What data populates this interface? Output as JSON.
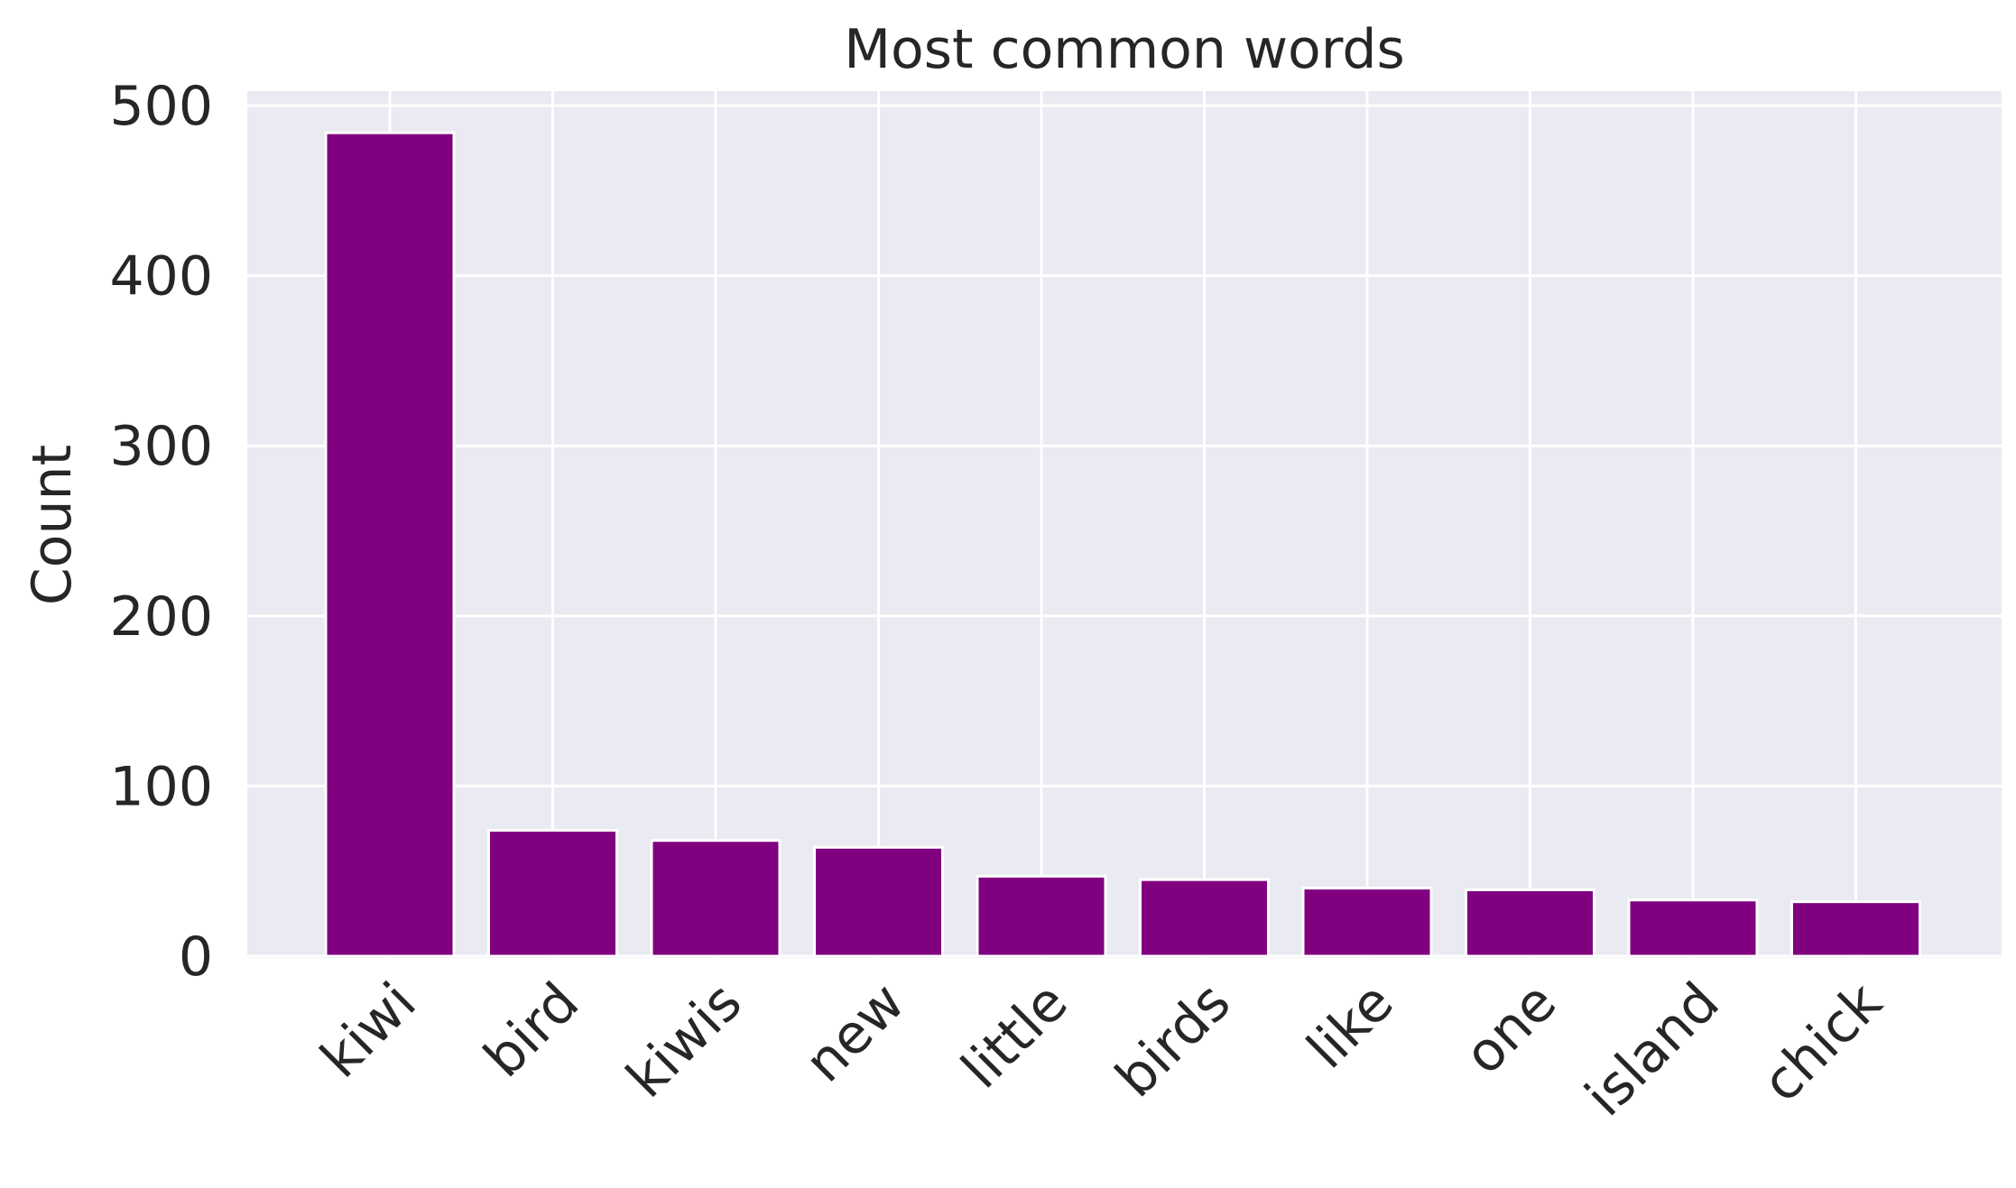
{
  "chart_data": {
    "type": "bar",
    "title": "Most common words",
    "xlabel": "",
    "ylabel": "Count",
    "categories": [
      "kiwi",
      "bird",
      "kiwis",
      "new",
      "little",
      "birds",
      "like",
      "one",
      "island",
      "chick"
    ],
    "values": [
      484,
      74,
      68,
      64,
      47,
      45,
      40,
      39,
      33,
      32
    ],
    "ylim": [
      0,
      500
    ],
    "yticks": [
      0,
      100,
      200,
      300,
      400,
      500
    ],
    "grid": true,
    "legend": "none",
    "colors": {
      "bar": "#800080",
      "plot_background": "#EAEAF2",
      "grid": "#FFFFFF",
      "text": "#262626"
    }
  }
}
